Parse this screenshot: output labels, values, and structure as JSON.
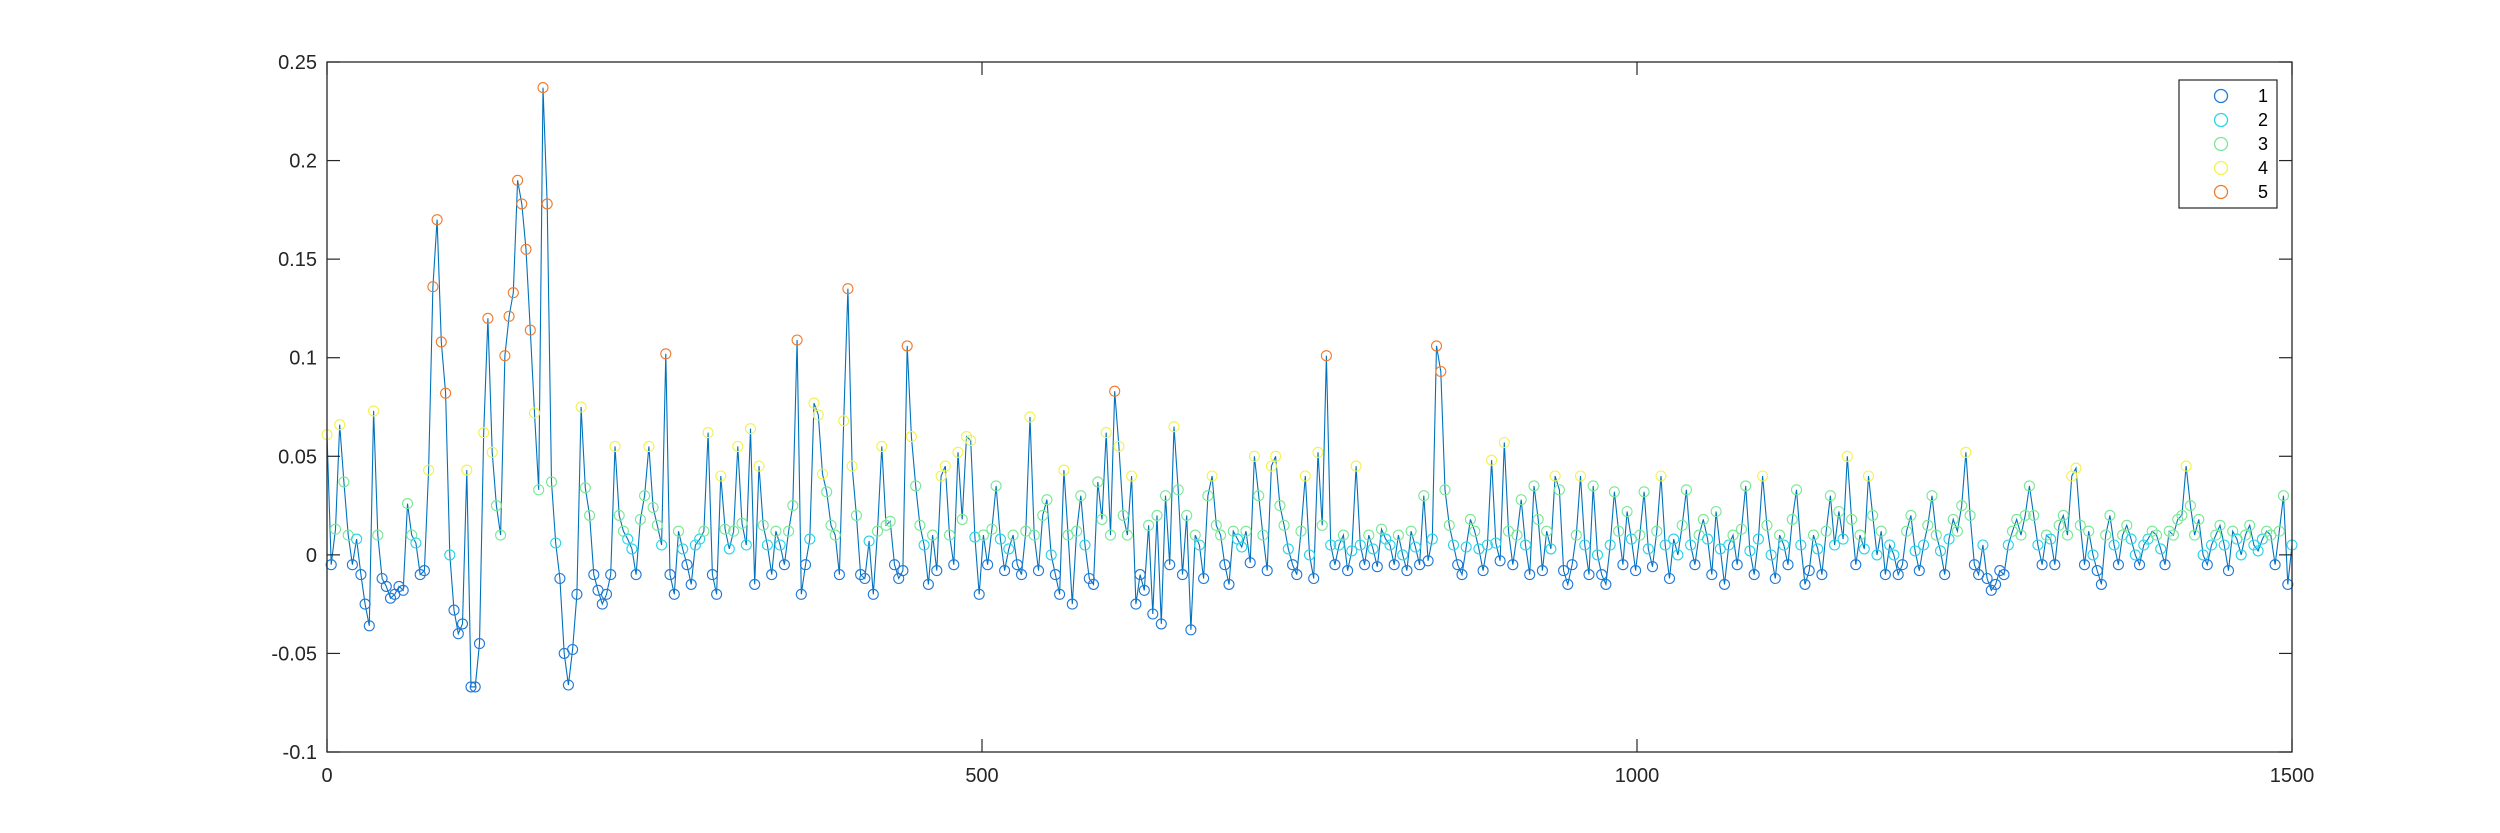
{
  "chart_data": {
    "type": "scatter",
    "title": "",
    "xlabel": "",
    "ylabel": "",
    "xlim": [
      0,
      1500
    ],
    "ylim": [
      -0.1,
      0.25
    ],
    "x_ticks": [
      {
        "value": 0,
        "label": "0"
      },
      {
        "value": 500,
        "label": "500"
      },
      {
        "value": 1000,
        "label": "1000"
      },
      {
        "value": 1500,
        "label": "1500"
      }
    ],
    "y_ticks": [
      {
        "value": -0.1,
        "label": "-0.1"
      },
      {
        "value": -0.05,
        "label": "-0.05"
      },
      {
        "value": 0,
        "label": "0"
      },
      {
        "value": 0.05,
        "label": "0.05"
      },
      {
        "value": 0.1,
        "label": "0.1"
      },
      {
        "value": 0.15,
        "label": "0.15"
      },
      {
        "value": 0.2,
        "label": "0.2"
      },
      {
        "value": 0.25,
        "label": "0.25"
      }
    ],
    "grid": false,
    "legend_position": "top-right",
    "line_color": "#0072bd",
    "series": [
      {
        "name": "1",
        "color": "#1f78d8"
      },
      {
        "name": "2",
        "color": "#27d4e8"
      },
      {
        "name": "3",
        "color": "#78e896"
      },
      {
        "name": "4",
        "color": "#f2f24a"
      },
      {
        "name": "5",
        "color": "#f07a2c"
      }
    ],
    "y": [
      0.061,
      -0.005,
      0.013,
      0.066,
      0.037,
      0.01,
      -0.005,
      0.008,
      -0.01,
      -0.025,
      -0.036,
      0.073,
      0.01,
      -0.012,
      -0.016,
      -0.022,
      -0.02,
      -0.016,
      -0.018,
      0.026,
      0.01,
      0.006,
      -0.01,
      -0.008,
      0.043,
      0.136,
      0.17,
      0.108,
      0.082,
      0.0,
      -0.028,
      -0.04,
      -0.035,
      0.043,
      -0.067,
      -0.067,
      -0.045,
      0.062,
      0.12,
      0.052,
      0.025,
      0.01,
      0.101,
      0.121,
      0.133,
      0.19,
      0.178,
      0.155,
      0.114,
      0.072,
      0.033,
      0.237,
      0.178,
      0.037,
      0.006,
      -0.012,
      -0.05,
      -0.066,
      -0.048,
      -0.02,
      0.075,
      0.034,
      0.02,
      -0.01,
      -0.018,
      -0.025,
      -0.02,
      -0.01,
      0.055,
      0.02,
      0.012,
      0.008,
      0.003,
      -0.01,
      0.018,
      0.03,
      0.055,
      0.024,
      0.015,
      0.005,
      0.102,
      -0.01,
      -0.02,
      0.012,
      0.003,
      -0.005,
      -0.015,
      0.005,
      0.008,
      0.012,
      0.062,
      -0.01,
      -0.02,
      0.04,
      0.013,
      0.003,
      0.012,
      0.055,
      0.016,
      0.005,
      0.064,
      -0.015,
      0.045,
      0.015,
      0.005,
      -0.01,
      0.012,
      0.005,
      -0.005,
      0.012,
      0.025,
      0.109,
      -0.02,
      -0.005,
      0.008,
      0.077,
      0.071,
      0.041,
      0.032,
      0.015,
      0.01,
      -0.01,
      0.068,
      0.135,
      0.045,
      0.02,
      -0.01,
      -0.012,
      0.007,
      -0.02,
      0.012,
      0.055,
      0.015,
      0.017,
      -0.005,
      -0.012,
      -0.008,
      0.106,
      0.06,
      0.035,
      0.015,
      0.005,
      -0.015,
      0.01,
      -0.008,
      0.04,
      0.045,
      0.01,
      -0.005,
      0.052,
      0.018,
      0.06,
      0.058,
      0.009,
      -0.02,
      0.01,
      -0.005,
      0.013,
      0.035,
      0.008,
      -0.008,
      0.003,
      0.01,
      -0.005,
      -0.01,
      0.012,
      0.07,
      0.01,
      -0.008,
      0.02,
      0.028,
      0.0,
      -0.01,
      -0.02,
      0.043,
      0.01,
      -0.025,
      0.012,
      0.03,
      0.005,
      -0.012,
      -0.015,
      0.037,
      0.018,
      0.062,
      0.01,
      0.083,
      0.055,
      0.02,
      0.01,
      0.04,
      -0.025,
      -0.01,
      -0.018,
      0.015,
      -0.03,
      0.02,
      -0.035,
      0.03,
      -0.005,
      0.065,
      0.033,
      -0.01,
      0.02,
      -0.038,
      0.01,
      0.005,
      -0.012,
      0.03,
      0.04,
      0.015,
      0.01,
      -0.005,
      -0.015,
      0.012,
      0.008,
      0.004,
      0.012,
      -0.004,
      0.05,
      0.03,
      0.01,
      -0.008,
      0.045,
      0.05,
      0.025,
      0.015,
      0.003,
      -0.005,
      -0.01,
      0.012,
      0.04,
      0.0,
      -0.012,
      0.052,
      0.015,
      0.101,
      0.005,
      -0.005,
      0.005,
      0.01,
      -0.008,
      0.002,
      0.045,
      0.005,
      -0.005,
      0.01,
      0.003,
      -0.006,
      0.013,
      0.008,
      0.005,
      -0.005,
      0.01,
      0.0,
      -0.008,
      0.012,
      0.004,
      -0.005,
      0.03,
      -0.003,
      0.008,
      0.106,
      0.093,
      0.033,
      0.015,
      0.005,
      -0.005,
      -0.01,
      0.004,
      0.018,
      0.012,
      0.003,
      -0.008,
      0.005,
      0.048,
      0.006,
      -0.003,
      0.057,
      0.012,
      -0.005,
      0.01,
      0.028,
      0.005,
      -0.01,
      0.035,
      0.018,
      -0.008,
      0.012,
      0.003,
      0.04,
      0.033,
      -0.008,
      -0.015,
      -0.005,
      0.01,
      0.04,
      0.005,
      -0.01,
      0.035,
      0.0,
      -0.01,
      -0.015,
      0.005,
      0.032,
      0.012,
      -0.005,
      0.022,
      0.008,
      -0.008,
      0.01,
      0.032,
      0.003,
      -0.006,
      0.012,
      0.04,
      0.005,
      -0.012,
      0.008,
      0.0,
      0.015,
      0.033,
      0.005,
      -0.005,
      0.01,
      0.018,
      0.008,
      -0.01,
      0.022,
      0.003,
      -0.015,
      0.005,
      0.01,
      -0.005,
      0.013,
      0.035,
      0.002,
      -0.01,
      0.008,
      0.04,
      0.015,
      0.0,
      -0.012,
      0.01,
      0.005,
      -0.005,
      0.018,
      0.033,
      0.005,
      -0.015,
      -0.008,
      0.01,
      0.003,
      -0.01,
      0.012,
      0.03,
      0.005,
      0.022,
      0.008,
      0.05,
      0.018,
      -0.005,
      0.01,
      0.003,
      0.04,
      0.02,
      0.0,
      0.012,
      -0.01,
      0.005,
      0.0,
      -0.01,
      -0.005,
      0.012,
      0.02,
      0.002,
      -0.008,
      0.005,
      0.015,
      0.03,
      0.01,
      0.002,
      -0.01,
      0.008,
      0.018,
      0.012,
      0.025,
      0.052,
      0.02,
      -0.005,
      -0.01,
      0.005,
      -0.012,
      -0.018,
      -0.015,
      -0.008,
      -0.01,
      0.005,
      0.012,
      0.018,
      0.01,
      0.02,
      0.035,
      0.02,
      0.005,
      -0.005,
      0.01,
      0.008,
      -0.005,
      0.015,
      0.02,
      0.01,
      0.04,
      0.044,
      0.015,
      -0.005,
      0.012,
      0.0,
      -0.008,
      -0.015,
      0.01,
      0.02,
      0.005,
      -0.005,
      0.01,
      0.015,
      0.008,
      0.0,
      -0.005,
      0.005,
      0.008,
      0.012,
      0.01,
      0.003,
      -0.005,
      0.012,
      0.01,
      0.018,
      0.02,
      0.045,
      0.025,
      0.01,
      0.018,
      0.0,
      -0.005,
      0.005,
      0.01,
      0.015,
      0.005,
      -0.008,
      0.012,
      0.008,
      0.0,
      0.01,
      0.015,
      0.005,
      0.002,
      0.008,
      0.012,
      0.01,
      -0.005,
      0.012,
      0.03,
      -0.015,
      0.005
    ]
  },
  "legend": {
    "labels": [
      "1",
      "2",
      "3",
      "4",
      "5"
    ]
  }
}
